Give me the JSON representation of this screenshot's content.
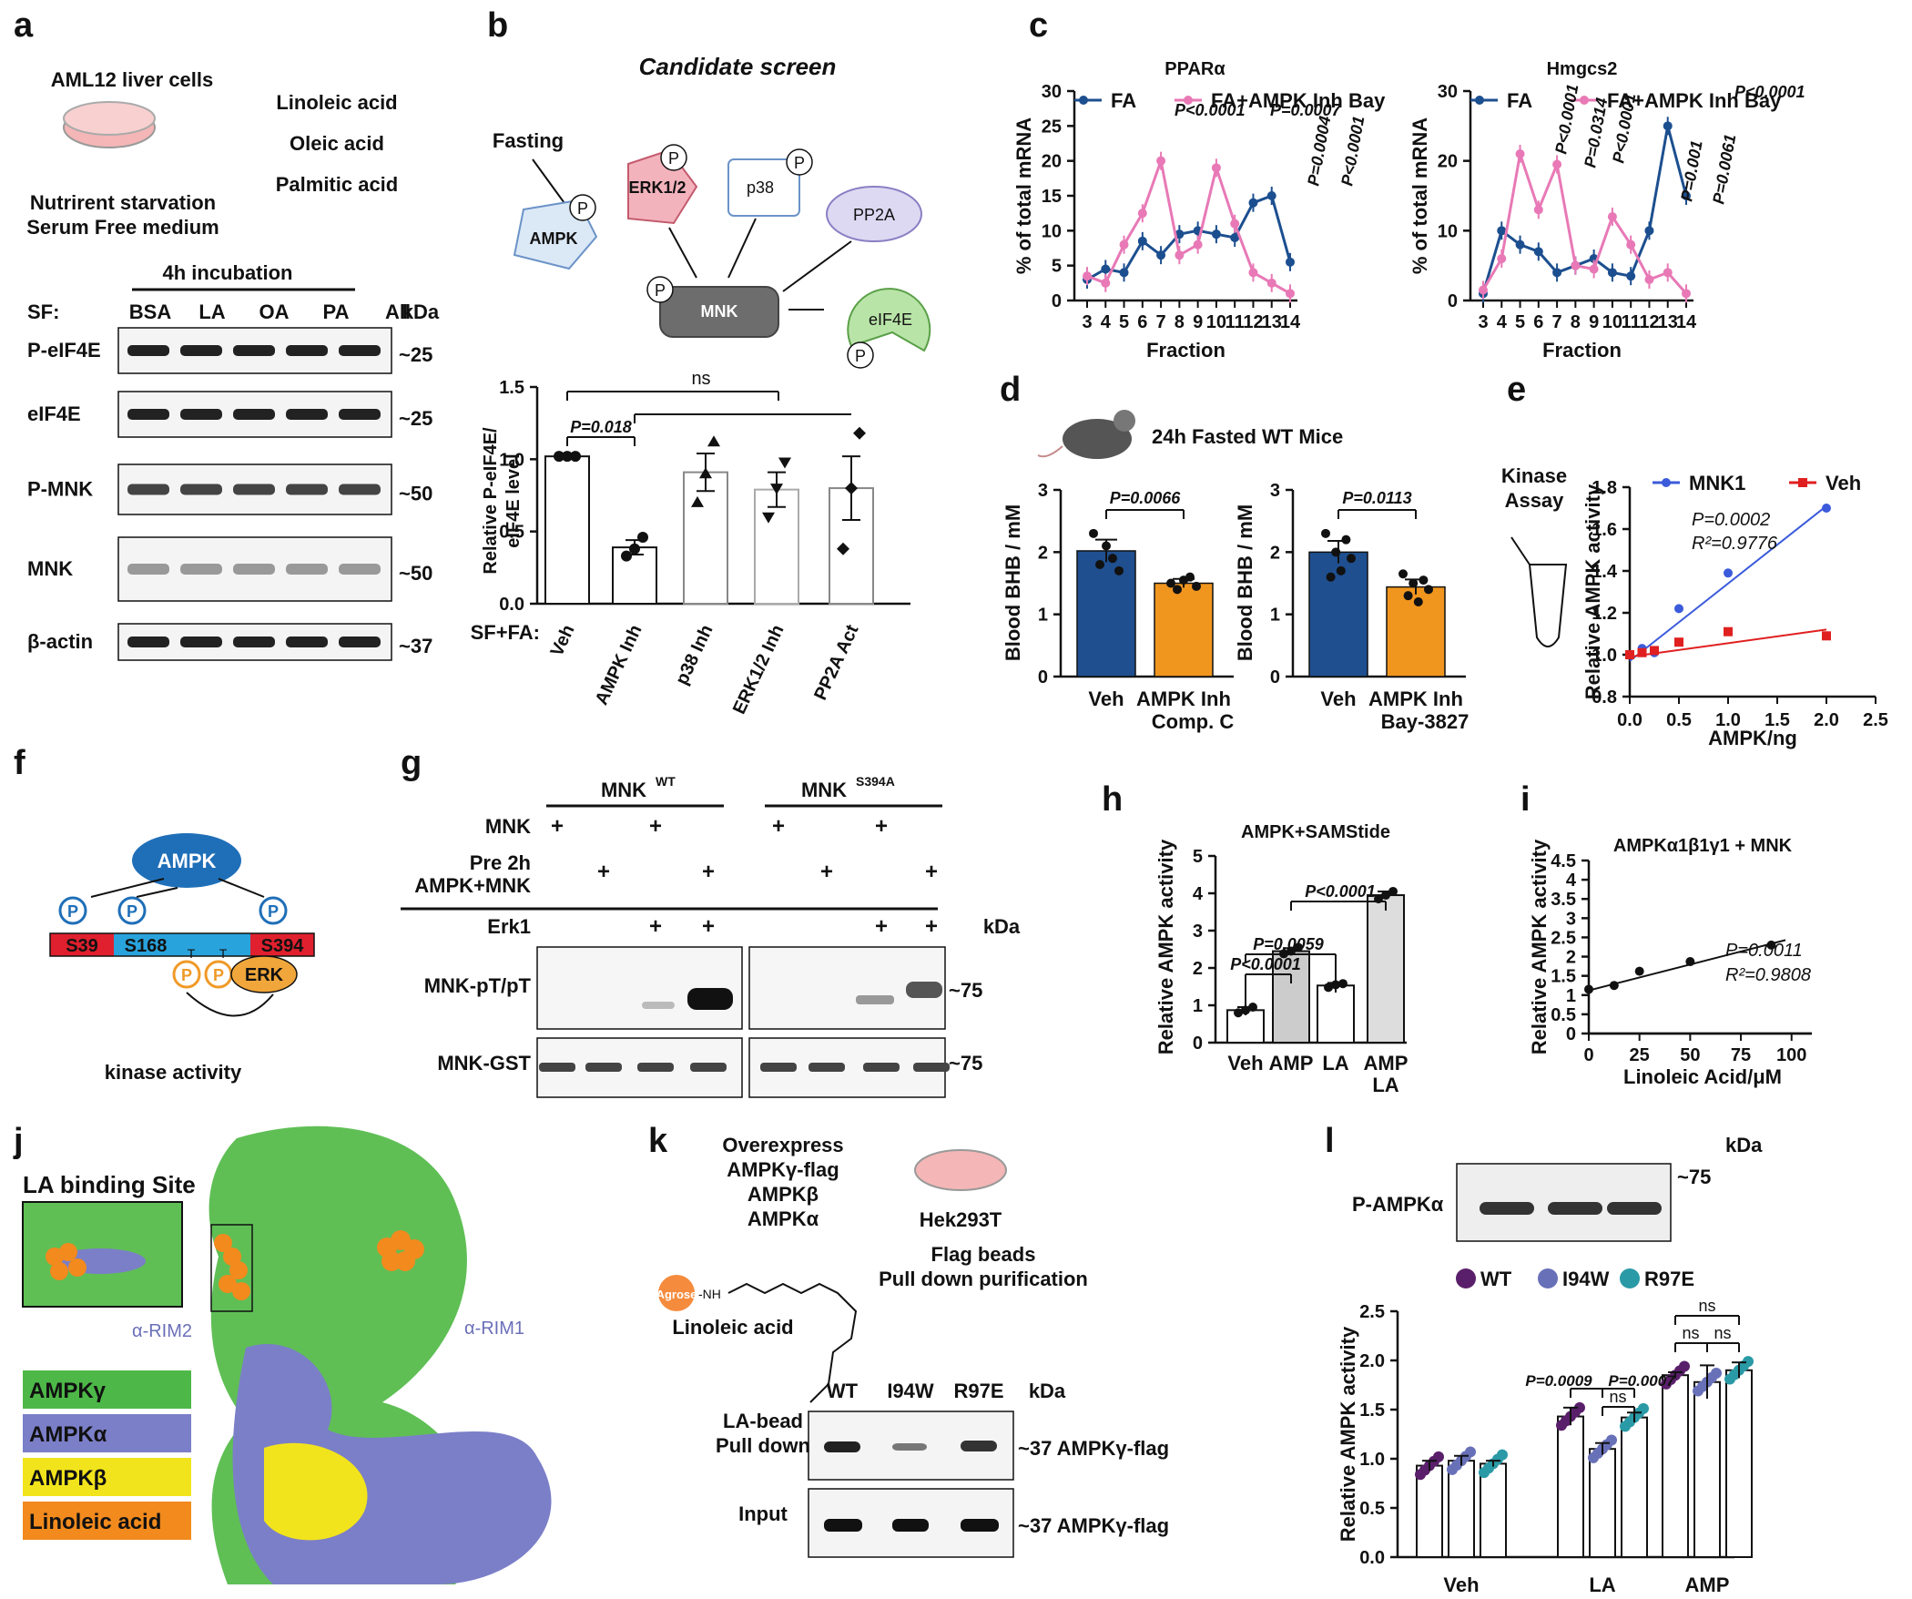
{
  "panels": {
    "a": {
      "letter": "a",
      "cells": "AML12 liver cells",
      "cond1": "Nutrirent starvation",
      "cond2": "Serum Free medium",
      "fas": [
        "Linoleic acid",
        "Oleic acid",
        "Palmitic acid"
      ],
      "incubation": "4h incubation",
      "sf": "SF:",
      "lanes": [
        "BSA",
        "LA",
        "OA",
        "PA",
        "All"
      ],
      "kda": "kDa",
      "blots": [
        {
          "name": "P-eIF4E",
          "mw": "~25"
        },
        {
          "name": "eIF4E",
          "mw": "~25"
        },
        {
          "name": "P-MNK",
          "mw": "~50"
        },
        {
          "name": "MNK",
          "mw": "~50"
        },
        {
          "name": "β-actin",
          "mw": "~37"
        }
      ]
    },
    "b": {
      "letter": "b",
      "title": "Candidate screen",
      "fasting": "Fasting",
      "nodes": {
        "ampk": "AMPK",
        "erk": "ERK1/2",
        "p38": "p38",
        "pp2a": "PP2A",
        "mnk": "MNK",
        "eif4e": "eIF4E",
        "p": "P"
      },
      "ylabel1": "Relative P-eIF4E/",
      "ylabel2": "eIF4E level",
      "row_label": "SF+FA:",
      "ns": "ns",
      "p_label": "P=0.018"
    },
    "c": {
      "letter": "c",
      "xlabel": "Fraction",
      "ylabel": "% of total mRNA",
      "legend": [
        "FA",
        "FA+AMPK Inh Bay"
      ]
    },
    "d": {
      "letter": "d",
      "mice": "24h Fasted WT Mice",
      "ylabel": "Blood BHB / mM",
      "p_left": "P=0.0066",
      "p_right": "P=0.0113",
      "sub_left": "Comp. C",
      "sub_right": "Bay-3827"
    },
    "e": {
      "letter": "e",
      "assay1": "Kinase",
      "assay2": "Assay",
      "legend": [
        "MNK1",
        "Veh"
      ],
      "p": "P=0.0002",
      "r2": "R²=0.9776",
      "ylabel": "Relative AMPK activity",
      "xlabel": "AMPK/ng"
    },
    "f": {
      "letter": "f",
      "ampk": "AMPK",
      "sites": [
        "S39",
        "S168",
        "S394"
      ],
      "t": "T",
      "p": "P",
      "erk": "ERK",
      "kinase": "kinase activity"
    },
    "g": {
      "letter": "g",
      "wt": "MNK",
      "wt_sup": "WT",
      "mut": "MNK",
      "mut_sup": "S394A",
      "rows": [
        "MNK",
        "Pre 2h",
        "AMPK+MNK",
        "Erk1"
      ],
      "plus": "+",
      "kda": "kDa",
      "blots": [
        {
          "name": "MNK-pT/pT",
          "mw": "~75"
        },
        {
          "name": "MNK-GST",
          "mw": "~75"
        }
      ]
    },
    "h": {
      "letter": "h",
      "title": "AMPK+SAMStide",
      "ylabel": "Relative AMPK activity",
      "p_labels": [
        "P<0.0001",
        "P=0.0059",
        "P<0.0001"
      ]
    },
    "i": {
      "letter": "i",
      "title": "AMPKα1β1γ1 + MNK",
      "p": "P=0.0011",
      "r2": "R²=0.9808",
      "ylabel": "Relative AMPK activity",
      "xlabel": "Linoleic Acid/μM"
    },
    "j": {
      "letter": "j",
      "site": "LA binding Site",
      "rim1": "α-RIM1",
      "rim2": "α-RIM2",
      "legend": [
        {
          "label": "AMPKγ",
          "color": "#4db848"
        },
        {
          "label": "AMPKα",
          "color": "#7b7fc8"
        },
        {
          "label": "AMPKβ",
          "color": "#f2e41c"
        },
        {
          "label": "Linoleic acid",
          "color": "#f28a1e"
        }
      ]
    },
    "k": {
      "letter": "k",
      "over": [
        "Overexpress",
        "AMPKγ-flag",
        "AMPKβ",
        "AMPKα"
      ],
      "cells": "Hek293T",
      "bead": "Agrose",
      "nh": "-NH",
      "beads": [
        "Flag beads",
        "Pull down purification"
      ],
      "la": "Linoleic acid",
      "lanes": [
        "WT",
        "I94W",
        "R97E"
      ],
      "kda": "kDa",
      "rows": [
        "LA-bead",
        "Pull down",
        "Input"
      ],
      "mw": "~37 AMPKγ-flag"
    },
    "l": {
      "letter": "l",
      "kda": "kDa",
      "blot": "P-AMPKα",
      "mw": "~75",
      "legend": [
        "WT",
        "I94W",
        "R97E"
      ],
      "p_labels": [
        "P=0.0009",
        "P=0.0007"
      ],
      "ns": "ns",
      "ylabel": "Relative AMPK activity"
    }
  },
  "chart_data": [
    {
      "panel": "b",
      "type": "bar",
      "categories": [
        "Veh",
        "AMPK Inh",
        "p38 Inh",
        "ERK1/2 Inh",
        "PP2A Act"
      ],
      "values": [
        1.02,
        0.39,
        0.91,
        0.79,
        0.8
      ],
      "errors": [
        0.0,
        0.05,
        0.13,
        0.12,
        0.22
      ],
      "points": [
        [
          1.02,
          1.02,
          1.02
        ],
        [
          0.33,
          0.38,
          0.46
        ],
        [
          0.7,
          0.9,
          1.12
        ],
        [
          0.6,
          0.8,
          0.98
        ],
        [
          0.38,
          0.8,
          1.18
        ]
      ],
      "ylim": [
        0,
        1.5
      ],
      "yticks": [
        0.0,
        0.5,
        1.0,
        1.5
      ],
      "annotations": [
        "P=0.018",
        "ns"
      ]
    },
    {
      "panel": "c-left",
      "type": "line",
      "title": "PPARα",
      "x": [
        3,
        4,
        5,
        6,
        7,
        8,
        9,
        10,
        11,
        12,
        13,
        14
      ],
      "ylim": [
        0,
        30
      ],
      "yticks": [
        0,
        5,
        10,
        15,
        20,
        25,
        30
      ],
      "series": [
        {
          "name": "FA",
          "color": "#1c4f8f",
          "values": [
            3,
            4.5,
            4,
            8.5,
            6.5,
            9.5,
            10,
            9.5,
            9,
            14,
            15,
            5.5
          ]
        },
        {
          "name": "FA+AMPK Inh Bay",
          "color": "#e879b6",
          "values": [
            3.5,
            2.5,
            8,
            12.5,
            20,
            6.5,
            8,
            19,
            11,
            4,
            2.5,
            1
          ]
        }
      ],
      "annotations": [
        "P<0.0001",
        "P=0.0007",
        "P=0.0004",
        "P<0.0001"
      ]
    },
    {
      "panel": "c-right",
      "type": "line",
      "title": "Hmgcs2",
      "x": [
        3,
        4,
        5,
        6,
        7,
        8,
        9,
        10,
        11,
        12,
        13,
        14
      ],
      "ylim": [
        0,
        30
      ],
      "yticks": [
        0,
        10,
        20,
        30
      ],
      "series": [
        {
          "name": "FA",
          "color": "#1c4f8f",
          "values": [
            1,
            10,
            8,
            7,
            4,
            5,
            6,
            4,
            3.5,
            10,
            25,
            15
          ]
        },
        {
          "name": "FA+AMPK Inh Bay",
          "color": "#e879b6",
          "values": [
            1.5,
            6,
            21,
            13,
            19.5,
            5,
            4.5,
            12,
            8,
            3,
            4,
            1
          ]
        }
      ],
      "annotations": [
        "P<0.0001",
        "P=0.0314",
        "P<0.0001",
        "P=0.001",
        "P=0.0061",
        "P<0.0001"
      ]
    },
    {
      "panel": "d-left",
      "type": "bar",
      "categories": [
        "Veh",
        "AMPK Inh"
      ],
      "values": [
        2.02,
        1.5
      ],
      "errors": [
        0.18,
        0.07
      ],
      "ylim": [
        0,
        3
      ],
      "yticks": [
        0,
        1,
        2,
        3
      ],
      "points": [
        [
          2.3,
          1.8,
          2.1,
          1.9,
          1.7
        ],
        [
          1.5,
          1.4,
          1.55,
          1.6,
          1.45
        ]
      ],
      "annotations": [
        "P=0.0066"
      ]
    },
    {
      "panel": "d-right",
      "type": "bar",
      "categories": [
        "Veh",
        "AMPK Inh"
      ],
      "values": [
        2.0,
        1.44
      ],
      "errors": [
        0.18,
        0.12
      ],
      "ylim": [
        0,
        3
      ],
      "yticks": [
        0,
        1,
        2,
        3
      ],
      "points": [
        [
          2.3,
          1.6,
          2.0,
          1.7,
          2.2,
          1.9
        ],
        [
          1.65,
          1.3,
          1.5,
          1.2,
          1.55,
          1.4
        ]
      ],
      "annotations": [
        "P=0.0113"
      ]
    },
    {
      "panel": "e",
      "type": "scatter",
      "xlim": [
        0,
        2.5
      ],
      "ylim": [
        0.8,
        1.8
      ],
      "xticks": [
        0.0,
        0.5,
        1.0,
        1.5,
        2.0,
        2.5
      ],
      "yticks": [
        0.8,
        1.0,
        1.2,
        1.4,
        1.6,
        1.8
      ],
      "series": [
        {
          "name": "MNK1",
          "color": "#3b5bdb",
          "x": [
            0.0,
            0.125,
            0.25,
            0.5,
            1.0,
            2.0
          ],
          "y": [
            1.0,
            1.03,
            1.01,
            1.22,
            1.39,
            1.7
          ]
        },
        {
          "name": "Veh",
          "color": "#e02020",
          "x": [
            0.0,
            0.125,
            0.25,
            0.5,
            1.0,
            2.0
          ],
          "y": [
            1.0,
            1.01,
            1.02,
            1.06,
            1.11,
            1.09
          ]
        }
      ]
    },
    {
      "panel": "h",
      "type": "bar",
      "title": "AMPK+SAMStide",
      "categories": [
        "Veh",
        "AMP",
        "LA",
        "AMP LA"
      ],
      "values": [
        0.87,
        2.45,
        1.53,
        3.95
      ],
      "errors": [
        0.08,
        0.08,
        0.07,
        0.1
      ],
      "points": [
        [
          0.8,
          0.87,
          0.95
        ],
        [
          2.38,
          2.45,
          2.55
        ],
        [
          1.48,
          1.55,
          1.58
        ],
        [
          3.85,
          3.95,
          4.05
        ]
      ],
      "ylim": [
        0,
        5
      ],
      "yticks": [
        0,
        1,
        2,
        3,
        4,
        5
      ],
      "annotations": [
        "P<0.0001",
        "P=0.0059",
        "P<0.0001"
      ]
    },
    {
      "panel": "i",
      "type": "scatter",
      "title": "AMPKα1β1γ1 + MNK",
      "x": [
        0,
        12.5,
        25,
        50,
        90
      ],
      "y": [
        1.15,
        1.25,
        1.62,
        1.87,
        2.3
      ],
      "xlim": [
        0,
        110
      ],
      "ylim": [
        0,
        4.5
      ],
      "xticks": [
        0,
        25,
        50,
        75,
        100
      ],
      "yticks": [
        0,
        0.5,
        1,
        1.5,
        2,
        2.5,
        3,
        3.5,
        4,
        4.5
      ]
    },
    {
      "panel": "l",
      "type": "bar",
      "categories": [
        "Veh",
        "LA",
        "AMP"
      ],
      "series": [
        {
          "name": "WT",
          "color": "#5a1f6b",
          "values": [
            0.93,
            1.43,
            1.85
          ],
          "errors": [
            0.05,
            0.09,
            0.03
          ]
        },
        {
          "name": "I94W",
          "color": "#6870b8",
          "values": [
            0.98,
            1.1,
            1.78
          ],
          "errors": [
            0.05,
            0.06,
            0.17
          ]
        },
        {
          "name": "R97E",
          "color": "#2a9aa6",
          "values": [
            0.95,
            1.42,
            1.9
          ],
          "errors": [
            0.03,
            0.05,
            0.08
          ]
        }
      ],
      "ylim": [
        0,
        2.5
      ],
      "yticks": [
        0.0,
        0.5,
        1.0,
        1.5,
        2.0,
        2.5
      ],
      "annotations": [
        "P=0.0009",
        "P=0.0007",
        "ns",
        "ns",
        "ns",
        "ns"
      ]
    }
  ]
}
